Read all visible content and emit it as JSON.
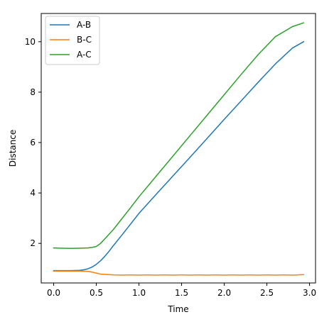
{
  "chart_data": {
    "type": "line",
    "title": "",
    "xlabel": "Time",
    "ylabel": "Distance",
    "xlim": [
      -0.146,
      3.07
    ],
    "ylim": [
      0.43,
      11.12
    ],
    "xticks": [
      0.0,
      0.5,
      1.0,
      1.5,
      2.0,
      2.5,
      3.0
    ],
    "xtick_labels": [
      "0.0",
      "0.5",
      "1.0",
      "1.5",
      "2.0",
      "2.5",
      "3.0"
    ],
    "yticks": [
      2,
      4,
      6,
      8,
      10
    ],
    "ytick_labels": [
      "2",
      "4",
      "6",
      "8",
      "10"
    ],
    "grid": false,
    "legend_position": "top-left",
    "series": [
      {
        "name": "A-B",
        "color": "#1f77b4",
        "x": [
          0.0,
          0.1,
          0.2,
          0.3,
          0.35,
          0.4,
          0.45,
          0.5,
          0.55,
          0.6,
          0.65,
          0.7,
          0.8,
          0.9,
          1.0,
          1.2,
          1.4,
          1.6,
          1.8,
          2.0,
          2.2,
          2.4,
          2.6,
          2.8,
          2.93
        ],
        "y": [
          0.92,
          0.92,
          0.92,
          0.93,
          0.95,
          0.99,
          1.06,
          1.17,
          1.31,
          1.49,
          1.69,
          1.91,
          2.33,
          2.76,
          3.19,
          3.94,
          4.68,
          5.42,
          6.17,
          6.92,
          7.66,
          8.4,
          9.12,
          9.75,
          10.0
        ]
      },
      {
        "name": "B-C",
        "color": "#ff7f0e",
        "x": [
          0.0,
          0.1,
          0.2,
          0.3,
          0.4,
          0.45,
          0.5,
          0.55,
          0.6,
          0.7,
          0.8,
          0.9,
          1.0,
          1.1,
          1.2,
          1.3,
          1.4,
          1.5,
          1.6,
          1.7,
          1.8,
          1.9,
          2.0,
          2.1,
          2.2,
          2.3,
          2.4,
          2.5,
          2.6,
          2.7,
          2.8,
          2.93
        ],
        "y": [
          0.9,
          0.9,
          0.9,
          0.9,
          0.89,
          0.86,
          0.82,
          0.78,
          0.77,
          0.75,
          0.74,
          0.75,
          0.74,
          0.75,
          0.74,
          0.75,
          0.74,
          0.75,
          0.74,
          0.75,
          0.74,
          0.75,
          0.74,
          0.75,
          0.74,
          0.75,
          0.74,
          0.75,
          0.74,
          0.75,
          0.74,
          0.76
        ]
      },
      {
        "name": "A-C",
        "color": "#2ca02c",
        "x": [
          0.0,
          0.1,
          0.2,
          0.3,
          0.4,
          0.45,
          0.5,
          0.55,
          0.6,
          0.7,
          0.8,
          0.9,
          1.0,
          1.2,
          1.4,
          1.6,
          1.8,
          2.0,
          2.2,
          2.4,
          2.6,
          2.8,
          2.93
        ],
        "y": [
          1.82,
          1.81,
          1.8,
          1.81,
          1.82,
          1.84,
          1.88,
          2.0,
          2.18,
          2.55,
          2.98,
          3.41,
          3.85,
          4.66,
          5.47,
          6.28,
          7.09,
          7.9,
          8.71,
          9.5,
          10.2,
          10.6,
          10.75
        ]
      }
    ]
  }
}
